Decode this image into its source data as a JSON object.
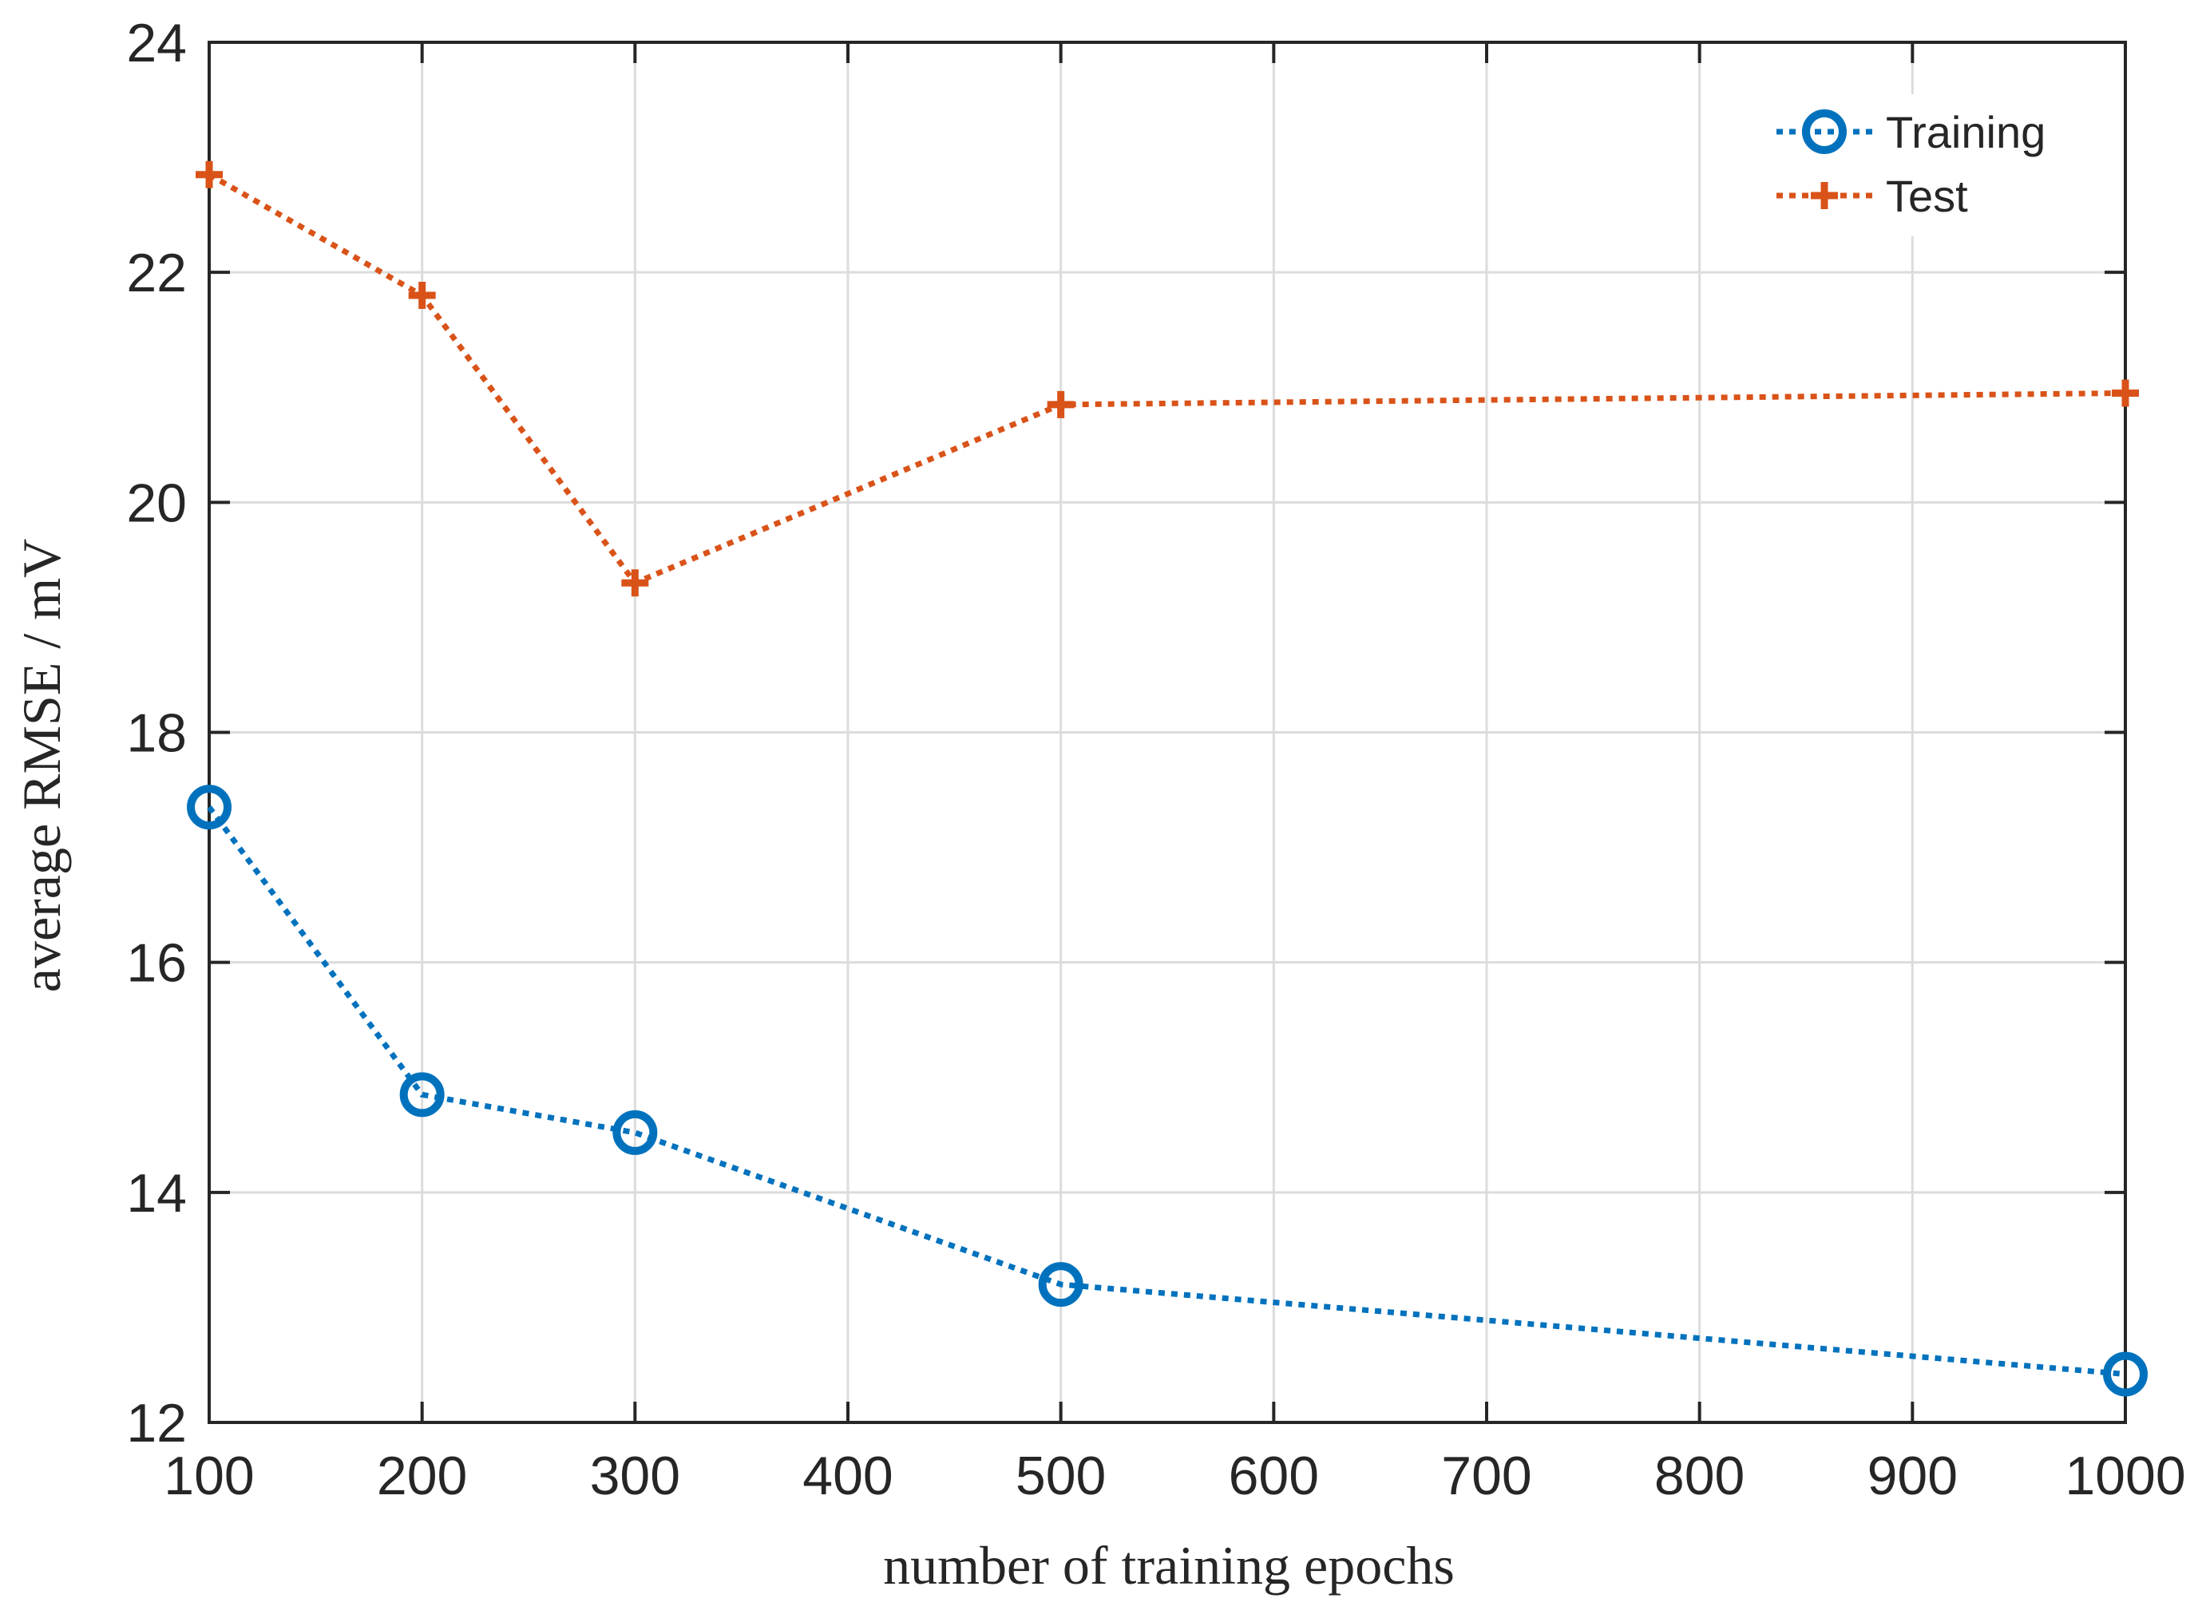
{
  "chart_data": {
    "type": "line",
    "title": "",
    "xlabel": "number of training epochs",
    "ylabel": "average RMSE / mV",
    "x_categories": [
      "100",
      "200",
      "300",
      "400",
      "500",
      "600",
      "700",
      "800",
      "900",
      "1000"
    ],
    "ylim": [
      12,
      24
    ],
    "y_ticks": [
      12,
      14,
      16,
      18,
      20,
      22,
      24
    ],
    "grid": true,
    "legend_position": "top-right",
    "series": [
      {
        "name": "Training",
        "color": "#0072BD",
        "marker": "circle",
        "line_style": "dotted",
        "points": [
          {
            "x": "100",
            "y": 17.35
          },
          {
            "x": "200",
            "y": 14.85
          },
          {
            "x": "300",
            "y": 14.52
          },
          {
            "x": "500",
            "y": 13.2
          },
          {
            "x": "1000",
            "y": 12.42
          }
        ]
      },
      {
        "name": "Test",
        "color": "#D95319",
        "marker": "plus",
        "line_style": "dotted",
        "points": [
          {
            "x": "100",
            "y": 22.85
          },
          {
            "x": "200",
            "y": 21.8
          },
          {
            "x": "300",
            "y": 19.3
          },
          {
            "x": "500",
            "y": 20.85
          },
          {
            "x": "1000",
            "y": 20.95
          }
        ]
      }
    ]
  }
}
